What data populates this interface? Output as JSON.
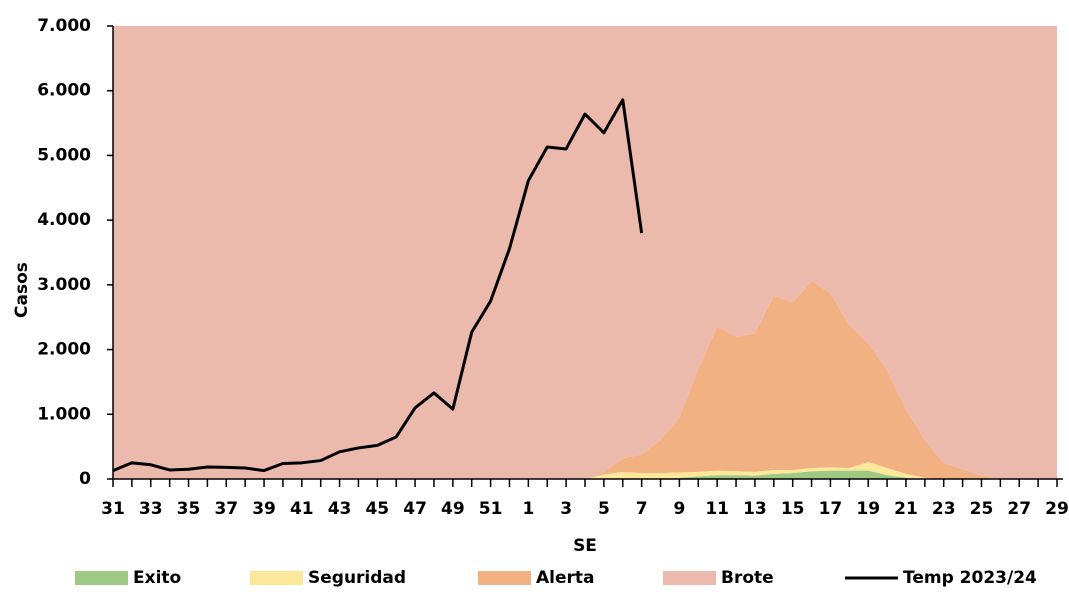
{
  "chart_data": {
    "type": "area",
    "x_label": "SE",
    "y_label": "Casos",
    "categories": [
      "31",
      null,
      "33",
      null,
      "35",
      null,
      "37",
      null,
      "39",
      null,
      "41",
      null,
      "43",
      null,
      "45",
      null,
      "47",
      null,
      "49",
      null,
      "51",
      null,
      "1",
      null,
      "3",
      null,
      "5",
      null,
      "7",
      null,
      "9",
      null,
      "11",
      null,
      "13",
      null,
      "15",
      null,
      "17",
      null,
      "19",
      null,
      "21",
      null,
      "23",
      null,
      "25",
      null,
      "27",
      null,
      "29"
    ],
    "ylim": [
      0,
      7000
    ],
    "yticks": [
      0,
      {
        "value": 1000,
        "label": "1.000"
      },
      {
        "value": 2000,
        "label": "2.000"
      },
      {
        "value": 3000,
        "label": "3.000"
      },
      {
        "value": 4000,
        "label": "4.000"
      },
      {
        "value": 5000,
        "label": "5.000"
      },
      {
        "value": 6000,
        "label": "6.000"
      },
      {
        "value": 7000,
        "label": "7.000"
      }
    ],
    "series": [
      {
        "name": "Exito",
        "color": "#9dc983",
        "type": "area",
        "values": [
          0,
          0,
          0,
          0,
          0,
          0,
          0,
          0,
          0,
          0,
          0,
          0,
          0,
          0,
          0,
          0,
          0,
          0,
          0,
          0,
          0,
          0,
          0,
          0,
          0,
          0,
          0,
          0,
          0,
          0,
          20,
          40,
          60,
          60,
          50,
          80,
          90,
          120,
          130,
          130,
          130,
          60,
          20,
          0,
          0,
          0,
          0,
          0,
          0,
          0,
          0
        ]
      },
      {
        "name": "Seguridad",
        "color": "#fde89a",
        "type": "area",
        "values": [
          0,
          0,
          0,
          0,
          0,
          0,
          0,
          0,
          0,
          0,
          0,
          0,
          0,
          0,
          0,
          0,
          0,
          0,
          0,
          0,
          0,
          0,
          0,
          0,
          0,
          0,
          70,
          110,
          90,
          90,
          80,
          70,
          70,
          60,
          60,
          60,
          50,
          50,
          50,
          40,
          130,
          110,
          60,
          20,
          0,
          0,
          0,
          0,
          0,
          0,
          0
        ]
      },
      {
        "name": "Alerta",
        "color": "#f2b183",
        "type": "area",
        "values": [
          0,
          0,
          0,
          0,
          0,
          0,
          0,
          0,
          0,
          0,
          0,
          0,
          0,
          0,
          0,
          0,
          0,
          0,
          0,
          0,
          0,
          0,
          0,
          0,
          0,
          0,
          30,
          210,
          290,
          510,
          850,
          1590,
          2220,
          2080,
          2140,
          2690,
          2590,
          2890,
          2690,
          2210,
          1840,
          1510,
          1000,
          580,
          250,
          150,
          50,
          0,
          0,
          0,
          0
        ]
      },
      {
        "name": "Brote",
        "color": "#ecb9ad",
        "type": "area",
        "values": [
          7000,
          7000,
          7000,
          7000,
          7000,
          7000,
          7000,
          7000,
          7000,
          7000,
          7000,
          7000,
          7000,
          7000,
          7000,
          7000,
          7000,
          7000,
          7000,
          7000,
          7000,
          7000,
          7000,
          7000,
          7000,
          7000,
          6900,
          6680,
          6620,
          6400,
          6050,
          5300,
          4650,
          4800,
          4750,
          4170,
          4270,
          3940,
          4130,
          4620,
          4900,
          5320,
          5920,
          6400,
          6750,
          6850,
          6950,
          7000,
          7000,
          7000,
          7000
        ]
      },
      {
        "name": "Temp 2023/24",
        "color": "#000000",
        "type": "line",
        "values": [
          130,
          250,
          220,
          140,
          150,
          185,
          180,
          170,
          130,
          240,
          250,
          285,
          420,
          480,
          520,
          650,
          1100,
          1330,
          1080,
          2270,
          2750,
          3560,
          4610,
          5130,
          5100,
          5640,
          5350,
          5860,
          3800,
          null,
          null,
          null,
          null,
          null,
          null,
          null,
          null,
          null,
          null,
          null,
          null,
          null,
          null,
          null,
          null,
          null,
          null,
          null,
          null,
          null,
          null
        ]
      }
    ]
  }
}
